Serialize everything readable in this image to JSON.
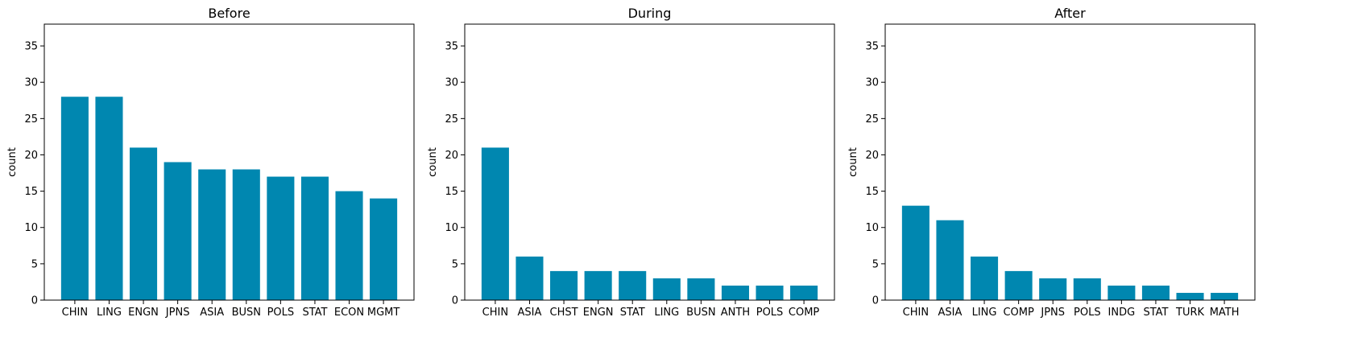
{
  "chart_data": [
    {
      "type": "bar",
      "title": "Before",
      "xlabel": "",
      "ylabel": "count",
      "ylim": [
        0,
        38
      ],
      "yticks": [
        0,
        5,
        10,
        15,
        20,
        25,
        30,
        35
      ],
      "categories": [
        "CHIN",
        "LING",
        "ENGN",
        "JPNS",
        "ASIA",
        "BUSN",
        "POLS",
        "STAT",
        "ECON",
        "MGMT"
      ],
      "values": [
        28,
        28,
        21,
        19,
        18,
        18,
        17,
        17,
        15,
        14
      ],
      "bar_color": "#0087b0",
      "grid": false
    },
    {
      "type": "bar",
      "title": "During",
      "xlabel": "",
      "ylabel": "count",
      "ylim": [
        0,
        38
      ],
      "yticks": [
        0,
        5,
        10,
        15,
        20,
        25,
        30,
        35
      ],
      "categories": [
        "CHIN",
        "ASIA",
        "CHST",
        "ENGN",
        "STAT",
        "LING",
        "BUSN",
        "ANTH",
        "POLS",
        "COMP"
      ],
      "values": [
        21,
        6,
        4,
        4,
        4,
        3,
        3,
        2,
        2,
        2
      ],
      "bar_color": "#0087b0",
      "grid": false
    },
    {
      "type": "bar",
      "title": "After",
      "xlabel": "",
      "ylabel": "count",
      "ylim": [
        0,
        38
      ],
      "yticks": [
        0,
        5,
        10,
        15,
        20,
        25,
        30,
        35
      ],
      "categories": [
        "CHIN",
        "ASIA",
        "LING",
        "COMP",
        "JPNS",
        "POLS",
        "INDG",
        "STAT",
        "TURK",
        "MATH"
      ],
      "values": [
        13,
        11,
        6,
        4,
        3,
        3,
        2,
        2,
        1,
        1
      ],
      "bar_color": "#0087b0",
      "grid": false
    }
  ]
}
